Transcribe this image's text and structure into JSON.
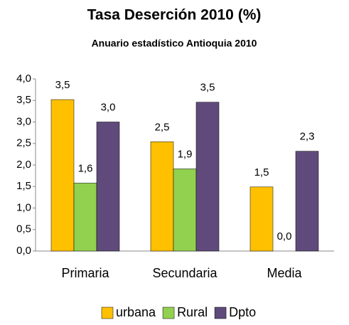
{
  "chart_data": {
    "type": "bar",
    "title": "Tasa Deserción 2010 (%)",
    "subtitle": "Anuario estadístico Antioquia   2010",
    "categories": [
      "Primaria",
      "Secundaria",
      "Media"
    ],
    "series": [
      {
        "name": "urbana",
        "color": "#ffc000",
        "values": [
          3.52,
          2.54,
          1.49
        ],
        "value_labels": [
          "3,5",
          "2,5",
          "1,5"
        ]
      },
      {
        "name": "Rural",
        "color": "#92d050",
        "values": [
          1.58,
          1.91,
          0
        ],
        "value_labels": [
          "1,6",
          "1,9",
          "0,0"
        ]
      },
      {
        "name": "Dpto",
        "color": "#604a7b",
        "values": [
          3.0,
          3.46,
          2.32
        ],
        "value_labels": [
          "3,0",
          "3,5",
          "2,3"
        ]
      }
    ],
    "ylim": [
      0,
      4
    ],
    "yticks": [
      {
        "value": 0,
        "label": "0,0"
      },
      {
        "value": 0.5,
        "label": "0,5"
      },
      {
        "value": 1,
        "label": "1,0"
      },
      {
        "value": 1.5,
        "label": "1,5"
      },
      {
        "value": 2,
        "label": "2,0"
      },
      {
        "value": 2.5,
        "label": "2,5"
      },
      {
        "value": 3,
        "label": "3,0"
      },
      {
        "value": 3.5,
        "label": "3,5"
      },
      {
        "value": 4,
        "label": "4,0"
      }
    ],
    "legend": "bottom"
  }
}
